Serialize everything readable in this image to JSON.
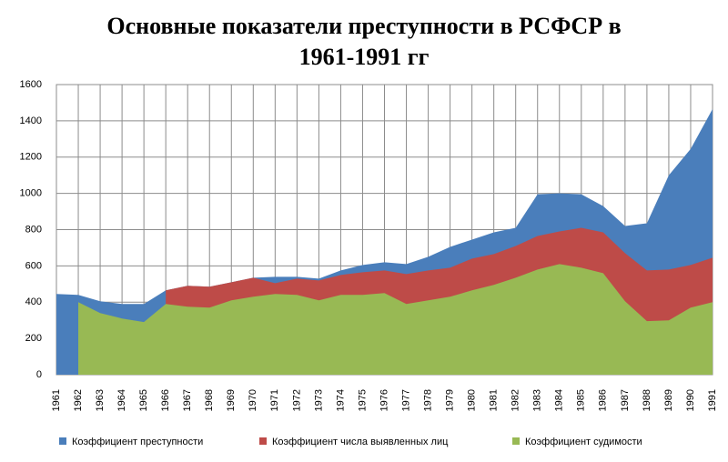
{
  "chart_data": {
    "type": "area",
    "title": "Основные показатели преступности в РСФСР в 1961-1991 гг",
    "categories": [
      "1961",
      "1962",
      "1963",
      "1964",
      "1965",
      "1966",
      "1967",
      "1968",
      "1969",
      "1970",
      "1971",
      "1972",
      "1973",
      "1974",
      "1975",
      "1976",
      "1977",
      "1978",
      "1979",
      "1980",
      "1981",
      "1982",
      "1983",
      "1984",
      "1985",
      "1986",
      "1987",
      "1988",
      "1989",
      "1990",
      "1991"
    ],
    "series": [
      {
        "name": "Коэффициент преступности",
        "color": "#4a7ebb",
        "values": [
          445,
          440,
          405,
          390,
          390,
          465,
          490,
          485,
          510,
          535,
          540,
          540,
          530,
          575,
          605,
          620,
          610,
          650,
          705,
          745,
          785,
          810,
          995,
          1000,
          995,
          930,
          820,
          835,
          1100,
          1245,
          1465
        ]
      },
      {
        "name": "Коэффициент числа выявленных лиц",
        "color": "#be4b48",
        "values": [
          null,
          null,
          null,
          null,
          null,
          465,
          490,
          485,
          510,
          535,
          505,
          530,
          520,
          550,
          565,
          575,
          555,
          575,
          590,
          640,
          665,
          710,
          765,
          790,
          810,
          785,
          670,
          575,
          580,
          605,
          645
        ]
      },
      {
        "name": "Коэффициент судимости",
        "color": "#98b954",
        "values": [
          null,
          400,
          340,
          310,
          290,
          390,
          375,
          370,
          410,
          430,
          445,
          440,
          410,
          440,
          440,
          450,
          390,
          410,
          430,
          465,
          495,
          535,
          580,
          610,
          590,
          560,
          405,
          295,
          300,
          370,
          400
        ]
      }
    ],
    "ylim": [
      0,
      1600
    ],
    "yticks": [
      0,
      200,
      400,
      600,
      800,
      1000,
      1200,
      1400,
      1600
    ],
    "grid": true,
    "legend": "bottom"
  }
}
